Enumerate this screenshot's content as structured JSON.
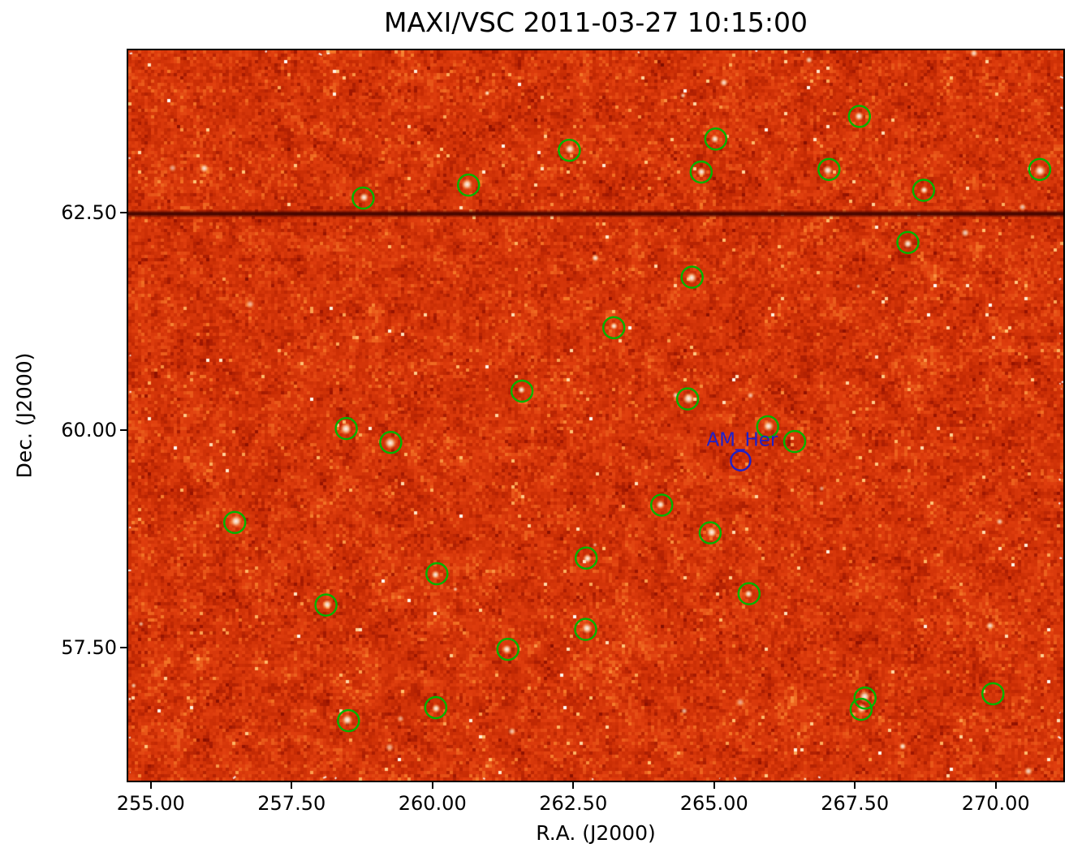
{
  "chart_data": {
    "type": "heatmap",
    "title": "MAXI/VSC 2011-03-27 10:15:00",
    "xlabel": "R.A. (J2000)",
    "ylabel": "Dec. (J2000)",
    "xlim": [
      254.6,
      271.2
    ],
    "ylim": [
      55.97,
      64.37
    ],
    "x_ticks": [
      255.0,
      257.5,
      260.0,
      262.5,
      265.0,
      267.5,
      270.0
    ],
    "x_tick_labels": [
      "255.00",
      "257.50",
      "260.00",
      "262.50",
      "265.00",
      "267.50",
      "270.00"
    ],
    "y_ticks": [
      57.5,
      60.0,
      62.5
    ],
    "y_tick_labels": [
      "57.50",
      "60.00",
      "62.50"
    ],
    "grid": false,
    "legend": null,
    "image": {
      "description": "MAXI/VSC X-ray all-sky slew image: mottled red-orange noise field with white point sources",
      "base_color": "#d23408",
      "dark_mottle_color": "#8c1200",
      "bright_source_color": "#ffffff",
      "dark_scan_line_dec": 62.49
    },
    "source_circles": {
      "color": "#00b400",
      "radius_px": 13,
      "points": [
        [
          258.77,
          62.67
        ],
        [
          260.64,
          62.82
        ],
        [
          262.43,
          63.22
        ],
        [
          265.03,
          63.35
        ],
        [
          264.77,
          62.97
        ],
        [
          267.58,
          63.61
        ],
        [
          267.04,
          63.0
        ],
        [
          268.72,
          62.76
        ],
        [
          270.78,
          63.0
        ],
        [
          268.44,
          62.16
        ],
        [
          264.61,
          61.76
        ],
        [
          263.22,
          61.18
        ],
        [
          261.59,
          60.45
        ],
        [
          264.53,
          60.36
        ],
        [
          258.47,
          60.02
        ],
        [
          259.26,
          59.86
        ],
        [
          265.95,
          60.04
        ],
        [
          266.43,
          59.87
        ],
        [
          264.07,
          59.14
        ],
        [
          264.93,
          58.82
        ],
        [
          256.49,
          58.94
        ],
        [
          262.73,
          58.53
        ],
        [
          260.08,
          58.35
        ],
        [
          265.62,
          58.12
        ],
        [
          258.11,
          57.99
        ],
        [
          262.72,
          57.71
        ],
        [
          261.34,
          57.48
        ],
        [
          267.68,
          56.92
        ],
        [
          267.61,
          56.79
        ],
        [
          269.95,
          56.97
        ],
        [
          260.06,
          56.81
        ],
        [
          258.51,
          56.66
        ]
      ]
    },
    "annotation": {
      "label": "AM_Her",
      "color": "#2020c8",
      "ra": 265.47,
      "dec": 59.65,
      "circle_radius_px": 12
    }
  }
}
